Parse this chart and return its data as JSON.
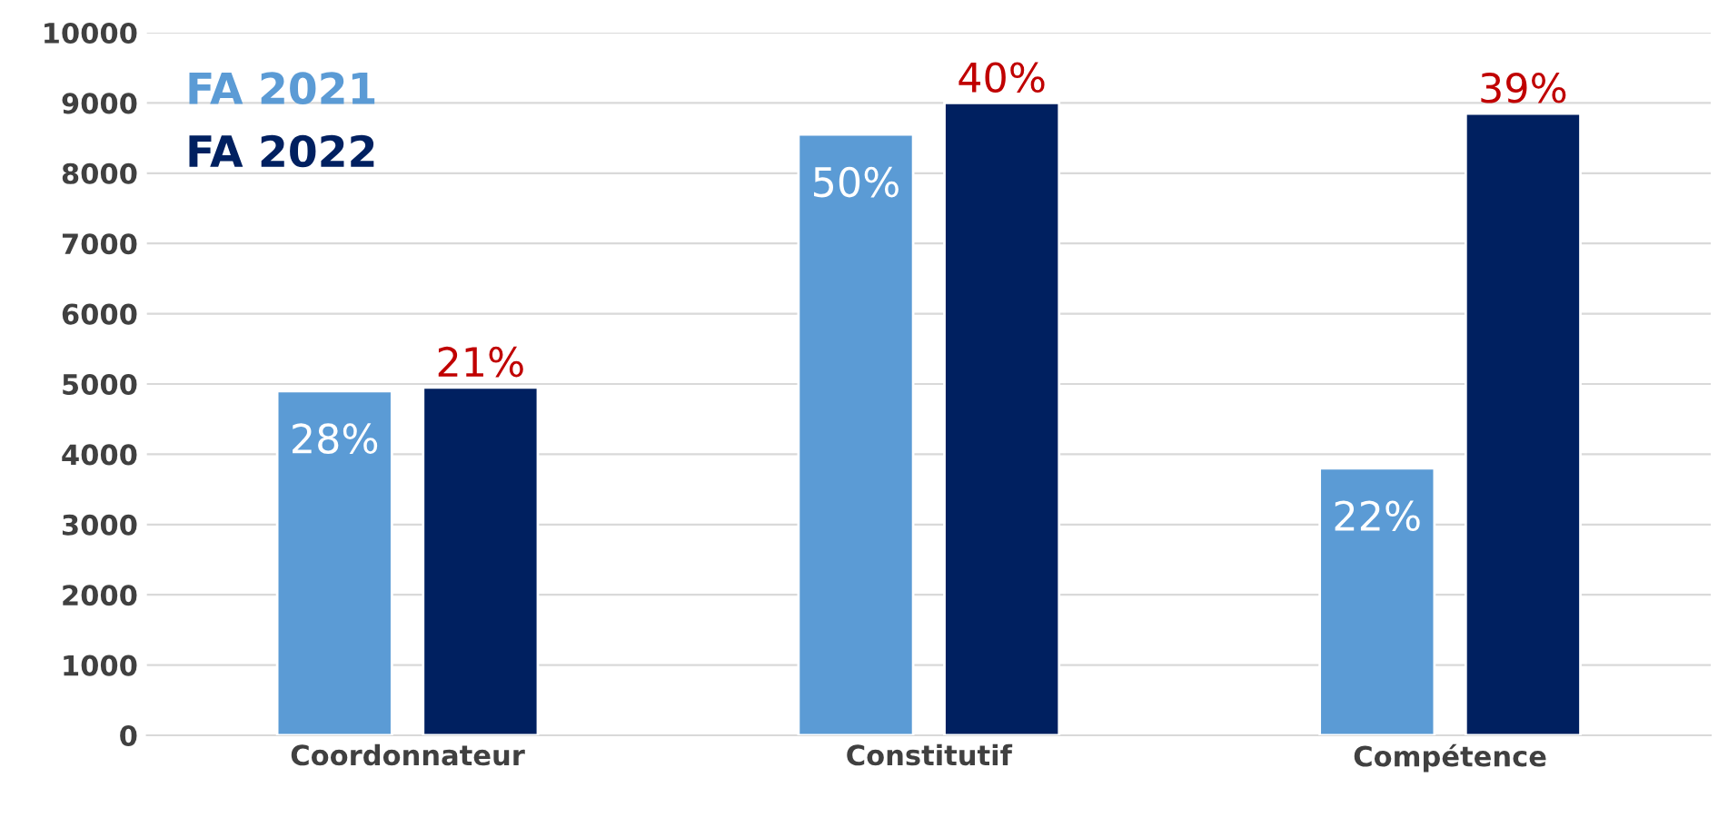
{
  "chart_data": {
    "type": "bar",
    "categories": [
      "Coordonnateur",
      "Constitutif",
      "Compétence"
    ],
    "series": [
      {
        "name": "FA 2021",
        "color": "#5b9bd5",
        "values": [
          4900,
          8550,
          3800
        ]
      },
      {
        "name": "FA 2022",
        "color": "#002060",
        "values": [
          4950,
          9000,
          8850
        ]
      }
    ],
    "annotations": [
      "28%",
      "50%",
      "22%",
      "21%",
      "40%",
      "39%"
    ],
    "ylim": [
      0,
      10000
    ],
    "yticks": [
      0,
      1000,
      2000,
      3000,
      4000,
      5000,
      6000,
      7000,
      8000,
      9000,
      10000
    ],
    "grid": "y",
    "legend": "top left"
  }
}
